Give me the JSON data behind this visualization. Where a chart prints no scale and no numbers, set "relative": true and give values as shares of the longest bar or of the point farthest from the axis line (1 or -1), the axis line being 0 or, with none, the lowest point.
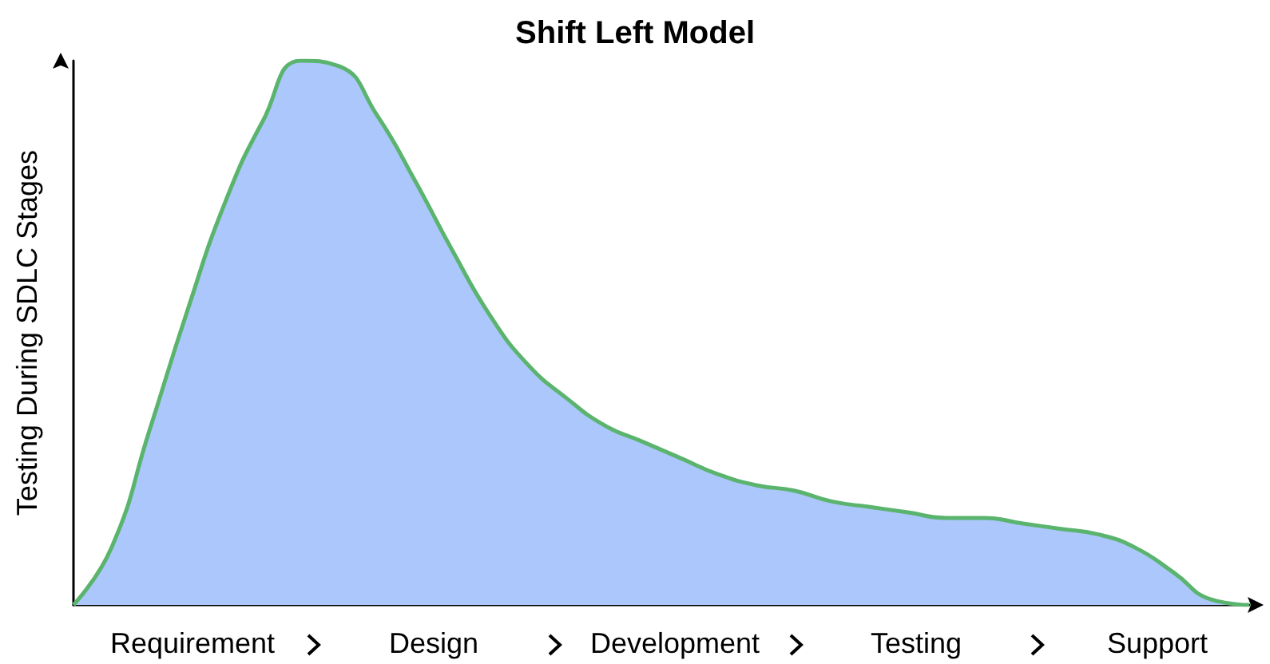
{
  "chart_data": {
    "type": "area",
    "title": "Shift Left Model",
    "ylabel": "Testing During SDLC Stages",
    "relative": true,
    "categories": [
      null,
      null,
      null,
      null,
      null,
      null,
      null,
      null,
      null,
      null,
      null,
      null,
      null,
      null,
      null,
      null,
      null,
      null,
      null,
      null,
      null,
      null,
      null,
      null,
      null,
      null,
      null,
      null,
      null,
      null,
      null,
      null
    ],
    "series": [
      {
        "color": "#abc7fb",
        "values": [
          0,
          0.105,
          0.32,
          0.54,
          0.74,
          0.89,
          1,
          0.99,
          0.9,
          0.78,
          0.65,
          0.53,
          0.44,
          0.38,
          0.33,
          0.3,
          0.27,
          0.24,
          0.22,
          0.21,
          0.19,
          0.18,
          0.17,
          0.16,
          0.16,
          0.15,
          0.14,
          0.13,
          0.105,
          0.06,
          0.01,
          0
        ]
      }
    ],
    "annotations": [
      "Requirement",
      "Design",
      "Development",
      "Testing",
      "Support"
    ],
    "grid": false
  }
}
